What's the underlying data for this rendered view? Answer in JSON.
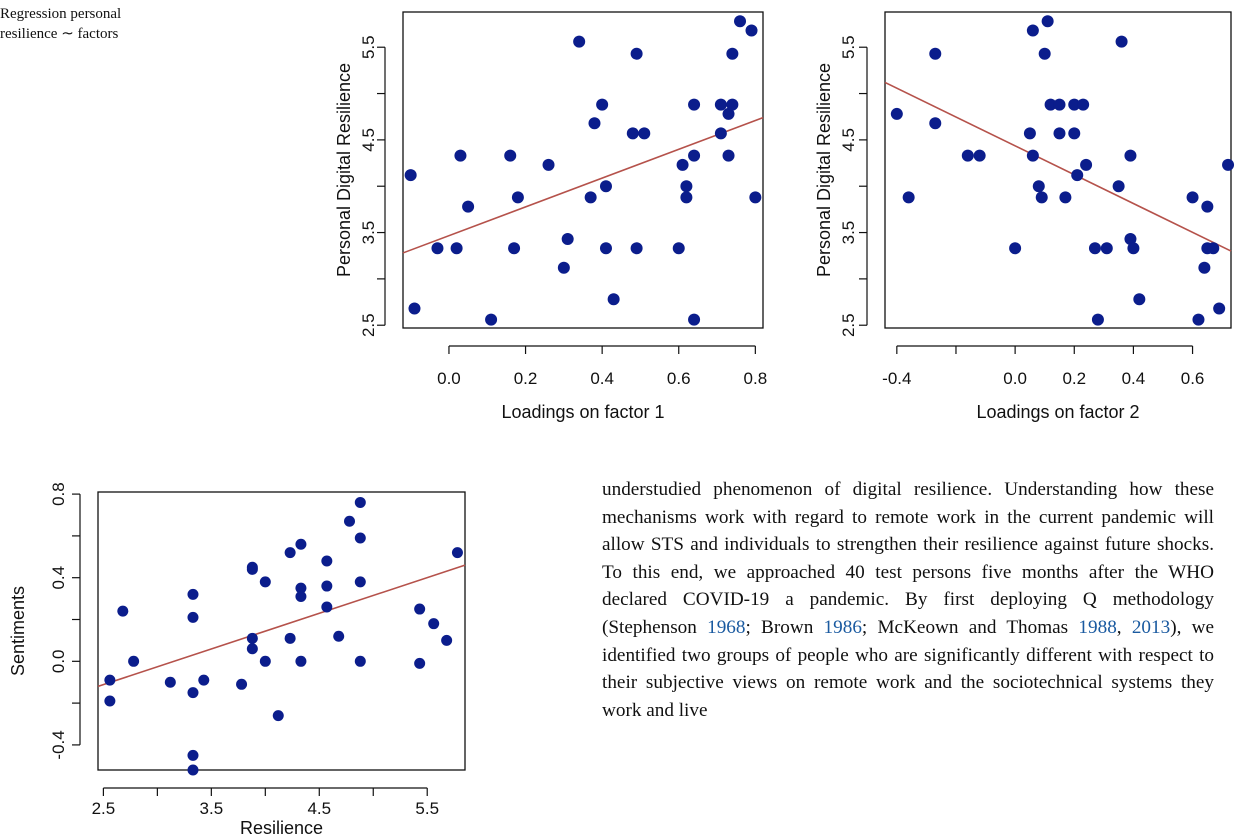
{
  "caption_fragment": {
    "line1": "Regression personal",
    "line2": "resilience ∼ factors"
  },
  "colors": {
    "points": "#0b1d8c",
    "line": "#b5524b",
    "axis": "#111111"
  },
  "chart_data": [
    {
      "type": "scatter",
      "xlabel": "Loadings on factor 1",
      "ylabel": "Personal Digital Resilience",
      "xlim": [
        -0.12,
        0.82
      ],
      "ylim": [
        2.47,
        5.88
      ],
      "xticks": [
        0.0,
        0.2,
        0.4,
        0.6,
        0.8
      ],
      "xtick_labels": [
        "0.0",
        "0.2",
        "0.4",
        "0.6",
        "0.8"
      ],
      "yticks": [
        2.5,
        3.0,
        3.5,
        4.0,
        4.5,
        5.0,
        5.5
      ],
      "yticks_labeled": [
        2.5,
        3.5,
        4.5,
        5.5
      ],
      "ytick_labels": [
        "2.5",
        "3.5",
        "4.5",
        "5.5"
      ],
      "points": [
        [
          -0.1,
          4.12
        ],
        [
          -0.09,
          2.68
        ],
        [
          -0.03,
          3.33
        ],
        [
          0.02,
          3.33
        ],
        [
          0.03,
          4.33
        ],
        [
          0.05,
          3.78
        ],
        [
          0.11,
          2.56
        ],
        [
          0.16,
          4.33
        ],
        [
          0.17,
          3.33
        ],
        [
          0.18,
          3.88
        ],
        [
          0.26,
          4.23
        ],
        [
          0.3,
          3.12
        ],
        [
          0.31,
          3.43
        ],
        [
          0.34,
          5.56
        ],
        [
          0.37,
          3.88
        ],
        [
          0.38,
          4.68
        ],
        [
          0.4,
          4.88
        ],
        [
          0.41,
          4.0
        ],
        [
          0.41,
          3.33
        ],
        [
          0.43,
          2.78
        ],
        [
          0.48,
          4.57
        ],
        [
          0.49,
          5.43
        ],
        [
          0.49,
          3.33
        ],
        [
          0.51,
          4.57
        ],
        [
          0.6,
          3.33
        ],
        [
          0.61,
          4.23
        ],
        [
          0.62,
          4.0
        ],
        [
          0.62,
          3.88
        ],
        [
          0.64,
          4.88
        ],
        [
          0.64,
          4.33
        ],
        [
          0.64,
          2.56
        ],
        [
          0.71,
          4.88
        ],
        [
          0.71,
          4.57
        ],
        [
          0.73,
          4.78
        ],
        [
          0.73,
          4.33
        ],
        [
          0.74,
          5.43
        ],
        [
          0.74,
          4.88
        ],
        [
          0.76,
          5.78
        ],
        [
          0.79,
          5.68
        ],
        [
          0.8,
          3.88
        ]
      ],
      "fit_line": [
        [
          -0.12,
          3.28
        ],
        [
          0.82,
          4.74
        ]
      ]
    },
    {
      "type": "scatter",
      "xlabel": "Loadings on factor 2",
      "ylabel": "Personal Digital Resilience",
      "xlim": [
        -0.44,
        0.73
      ],
      "ylim": [
        2.47,
        5.88
      ],
      "xticks": [
        -0.4,
        -0.2,
        0.0,
        0.2,
        0.4,
        0.6
      ],
      "xtick_labels": [
        "-0.4",
        "",
        "0.0",
        "0.2",
        "0.4",
        "0.6"
      ],
      "yticks": [
        2.5,
        3.0,
        3.5,
        4.0,
        4.5,
        5.0,
        5.5
      ],
      "yticks_labeled": [
        2.5,
        3.5,
        4.5,
        5.5
      ],
      "ytick_labels": [
        "2.5",
        "3.5",
        "4.5",
        "5.5"
      ],
      "points": [
        [
          -0.4,
          4.78
        ],
        [
          -0.36,
          3.88
        ],
        [
          -0.27,
          5.43
        ],
        [
          -0.27,
          4.68
        ],
        [
          -0.16,
          4.33
        ],
        [
          -0.12,
          4.33
        ],
        [
          0.0,
          3.33
        ],
        [
          0.05,
          4.57
        ],
        [
          0.06,
          5.68
        ],
        [
          0.06,
          4.33
        ],
        [
          0.08,
          4.0
        ],
        [
          0.09,
          3.88
        ],
        [
          0.1,
          5.43
        ],
        [
          0.11,
          5.78
        ],
        [
          0.12,
          4.88
        ],
        [
          0.15,
          4.88
        ],
        [
          0.15,
          4.57
        ],
        [
          0.17,
          3.88
        ],
        [
          0.2,
          4.88
        ],
        [
          0.2,
          4.57
        ],
        [
          0.21,
          4.12
        ],
        [
          0.23,
          4.88
        ],
        [
          0.24,
          4.23
        ],
        [
          0.27,
          3.33
        ],
        [
          0.28,
          2.56
        ],
        [
          0.31,
          3.33
        ],
        [
          0.35,
          4.0
        ],
        [
          0.36,
          5.56
        ],
        [
          0.39,
          4.33
        ],
        [
          0.39,
          3.43
        ],
        [
          0.4,
          3.33
        ],
        [
          0.42,
          2.78
        ],
        [
          0.6,
          3.88
        ],
        [
          0.62,
          2.56
        ],
        [
          0.64,
          3.12
        ],
        [
          0.65,
          3.78
        ],
        [
          0.65,
          3.33
        ],
        [
          0.67,
          3.33
        ],
        [
          0.69,
          2.68
        ],
        [
          0.72,
          4.23
        ]
      ],
      "fit_line": [
        [
          -0.44,
          5.12
        ],
        [
          0.73,
          3.3
        ]
      ]
    },
    {
      "type": "scatter",
      "xlabel": "Resilience",
      "ylabel": "Sentiments",
      "xlim": [
        2.45,
        5.85
      ],
      "ylim": [
        -0.52,
        0.81
      ],
      "xticks": [
        2.5,
        3.0,
        3.5,
        4.0,
        4.5,
        5.0,
        5.5
      ],
      "xticks_labeled": [
        2.5,
        3.5,
        4.5,
        5.5
      ],
      "xtick_labels": [
        "2.5",
        "3.5",
        "4.5",
        "5.5"
      ],
      "yticks": [
        -0.4,
        -0.2,
        0.0,
        0.2,
        0.4,
        0.6,
        0.8
      ],
      "yticks_labeled": [
        -0.4,
        0.0,
        0.4,
        0.8
      ],
      "ytick_labels": [
        "-0.4",
        "0.0",
        "0.4",
        "0.8"
      ],
      "points": [
        [
          2.56,
          -0.09
        ],
        [
          2.56,
          -0.19
        ],
        [
          2.68,
          0.24
        ],
        [
          2.78,
          0.0
        ],
        [
          3.12,
          -0.1
        ],
        [
          3.33,
          0.32
        ],
        [
          3.33,
          0.21
        ],
        [
          3.33,
          -0.15
        ],
        [
          3.33,
          -0.45
        ],
        [
          3.33,
          -0.52
        ],
        [
          3.43,
          -0.09
        ],
        [
          3.78,
          -0.11
        ],
        [
          3.88,
          0.45
        ],
        [
          3.88,
          0.44
        ],
        [
          3.88,
          0.11
        ],
        [
          3.88,
          0.06
        ],
        [
          4.0,
          0.38
        ],
        [
          4.0,
          0.0
        ],
        [
          4.12,
          -0.26
        ],
        [
          4.23,
          0.52
        ],
        [
          4.23,
          0.11
        ],
        [
          4.33,
          0.56
        ],
        [
          4.33,
          0.35
        ],
        [
          4.33,
          0.31
        ],
        [
          4.33,
          0.0
        ],
        [
          4.57,
          0.48
        ],
        [
          4.57,
          0.36
        ],
        [
          4.57,
          0.26
        ],
        [
          4.68,
          0.12
        ],
        [
          4.78,
          0.67
        ],
        [
          4.88,
          0.76
        ],
        [
          4.88,
          0.59
        ],
        [
          4.88,
          0.38
        ],
        [
          4.88,
          0.0
        ],
        [
          5.43,
          0.25
        ],
        [
          5.43,
          -0.01
        ],
        [
          5.56,
          0.18
        ],
        [
          5.68,
          0.1
        ],
        [
          5.78,
          0.52
        ]
      ],
      "fit_line": [
        [
          2.45,
          -0.12
        ],
        [
          5.85,
          0.46
        ]
      ]
    }
  ],
  "body_text": {
    "t1": "understudied phenomenon of digital resilience. Understanding how these mechanisms work with regard to remote work in the current pandemic will allow STS and individuals to strengthen their resilience against future shocks. To this end, we approached 40 test persons five months after the WHO declared COVID-19 a pandemic. By first deploying Q methodology (Stephenson ",
    "c1": "1968",
    "t2": "; Brown ",
    "c2": "1986",
    "t3": "; McKeown and Thomas ",
    "c3": "1988",
    "t4": ", ",
    "c4": "2013",
    "t5": "), we identified two groups of people who are significantly different with respect to their subjective views on remote work and the sociotechnical systems they work and live"
  }
}
